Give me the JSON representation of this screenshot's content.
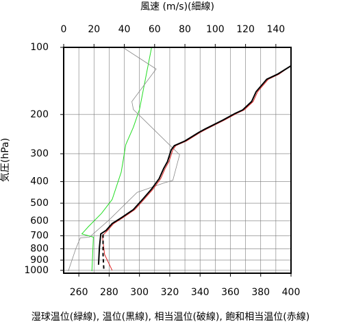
{
  "chart_data": {
    "type": "line",
    "x_label": "湿球温位(緑線), 温位(黒線), 相当温位(破線), 飽和相当温位(赤線)",
    "x2_label": "風速 (m/s)(細線)",
    "y_label": "気圧(hPa)",
    "xlim": [
      250,
      400
    ],
    "xticks": [
      260,
      280,
      300,
      320,
      340,
      360,
      380,
      400
    ],
    "x2lim": [
      0,
      150
    ],
    "x2ticks": [
      0,
      20,
      40,
      60,
      80,
      100,
      120,
      140
    ],
    "ylim": [
      100,
      1030
    ],
    "yticks": [
      100,
      200,
      300,
      400,
      500,
      600,
      700,
      800,
      900,
      1000
    ],
    "ylog": true,
    "yinverted": true,
    "grid": true,
    "series": [
      {
        "color": "#22dd22",
        "width": 1,
        "dash": false,
        "x": [
          308,
          300,
          296,
          291,
          288,
          282,
          275,
          266,
          262,
          269.6,
          268.6
        ],
        "y": [
          100,
          190,
          228,
          273,
          362,
          481,
          555,
          640,
          686,
          710,
          1010
        ]
      },
      {
        "color": "#888888",
        "width": 0.8,
        "dash": false,
        "axis": "x2",
        "x": [
          39,
          61,
          45,
          46,
          51,
          76.5,
          72,
          66.6,
          48.5,
          30,
          17,
          11,
          8,
          3
        ],
        "y": [
          100,
          125,
          175,
          190,
          205,
          303,
          395,
          405,
          447,
          594,
          710,
          715,
          800,
          1010
        ]
      },
      {
        "color": "#dd2222",
        "width": 1,
        "dash": false,
        "x": [
          400,
          392,
          385,
          378,
          375,
          369,
          364,
          356,
          344,
          340,
          331,
          324,
          322,
          319.5,
          317,
          314,
          309,
          303,
          297,
          290,
          288,
          283,
          279,
          275.5,
          277,
          282
        ],
        "y": [
          121,
          132,
          139,
          158,
          175,
          191,
          198,
          212,
          233,
          241,
          263,
          276,
          288,
          325,
          349,
          388,
          432,
          481,
          534,
          575,
          587,
          617,
          662,
          700,
          850,
          1000
        ]
      },
      {
        "color": "#000000",
        "width": 2,
        "dash": false,
        "x": [
          400,
          391,
          384,
          377,
          374,
          368,
          363,
          355,
          343,
          339,
          330,
          323,
          321,
          318.5,
          316,
          313,
          308,
          302,
          296,
          289,
          287,
          282,
          278,
          274.5,
          273.6,
          273
        ],
        "y": [
          121,
          132,
          139,
          158,
          175,
          191,
          198,
          212,
          233,
          241,
          263,
          276,
          288,
          325,
          349,
          388,
          432,
          481,
          534,
          575,
          587,
          617,
          662,
          686,
          790,
          944
        ]
      },
      {
        "color": "#000000",
        "width": 2,
        "dash": true,
        "x": [
          276,
          276,
          276.5
        ],
        "y": [
          690,
          850,
          1000
        ]
      }
    ]
  }
}
